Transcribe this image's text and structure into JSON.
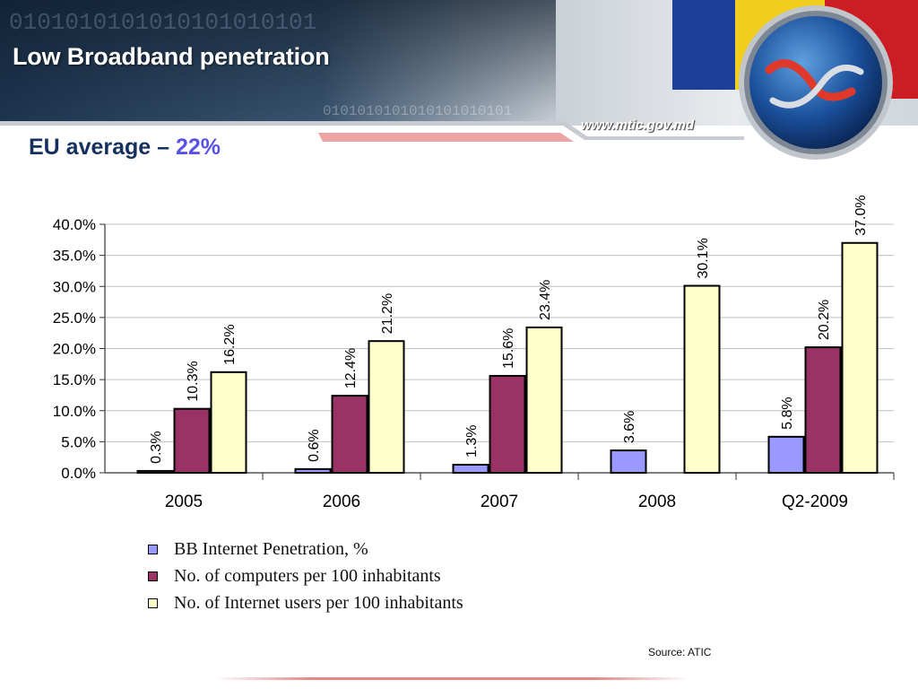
{
  "slide": {
    "title": "Low Broadband penetration",
    "website": "www.mtic.gov.md",
    "subtitle_prefix": "EU average – ",
    "subtitle_value": "22%",
    "source": "Source: ATIC",
    "binary_text": "0101010101010101010101"
  },
  "chart_data": {
    "type": "bar",
    "categories": [
      "2005",
      "2006",
      "2007",
      "2008",
      "Q2-2009"
    ],
    "series": [
      {
        "name": "BB Internet Penetration, %",
        "color": "#9999ff",
        "values": [
          0.3,
          0.6,
          1.3,
          3.6,
          5.8
        ],
        "labels": [
          "0.3%",
          "0.6%",
          "1.3%",
          "3.6%",
          "5.8%"
        ]
      },
      {
        "name": "No. of computers per 100 inhabitants",
        "color": "#993366",
        "values": [
          10.3,
          12.4,
          15.6,
          null,
          20.2
        ],
        "labels": [
          "10.3%",
          "12.4%",
          "15.6%",
          "",
          "20.2%"
        ]
      },
      {
        "name": "No. of Internet users per 100 inhabitants",
        "color": "#ffffcc",
        "values": [
          16.2,
          21.2,
          23.4,
          30.1,
          37.0
        ],
        "labels": [
          "16.2%",
          "21.2%",
          "23.4%",
          "30.1%",
          "37.0%"
        ]
      }
    ],
    "ylim": [
      0,
      40
    ],
    "yticks": [
      "0.0%",
      "5.0%",
      "10.0%",
      "15.0%",
      "20.0%",
      "25.0%",
      "30.0%",
      "35.0%",
      "40.0%"
    ],
    "grid": true,
    "legend_position": "bottom"
  }
}
